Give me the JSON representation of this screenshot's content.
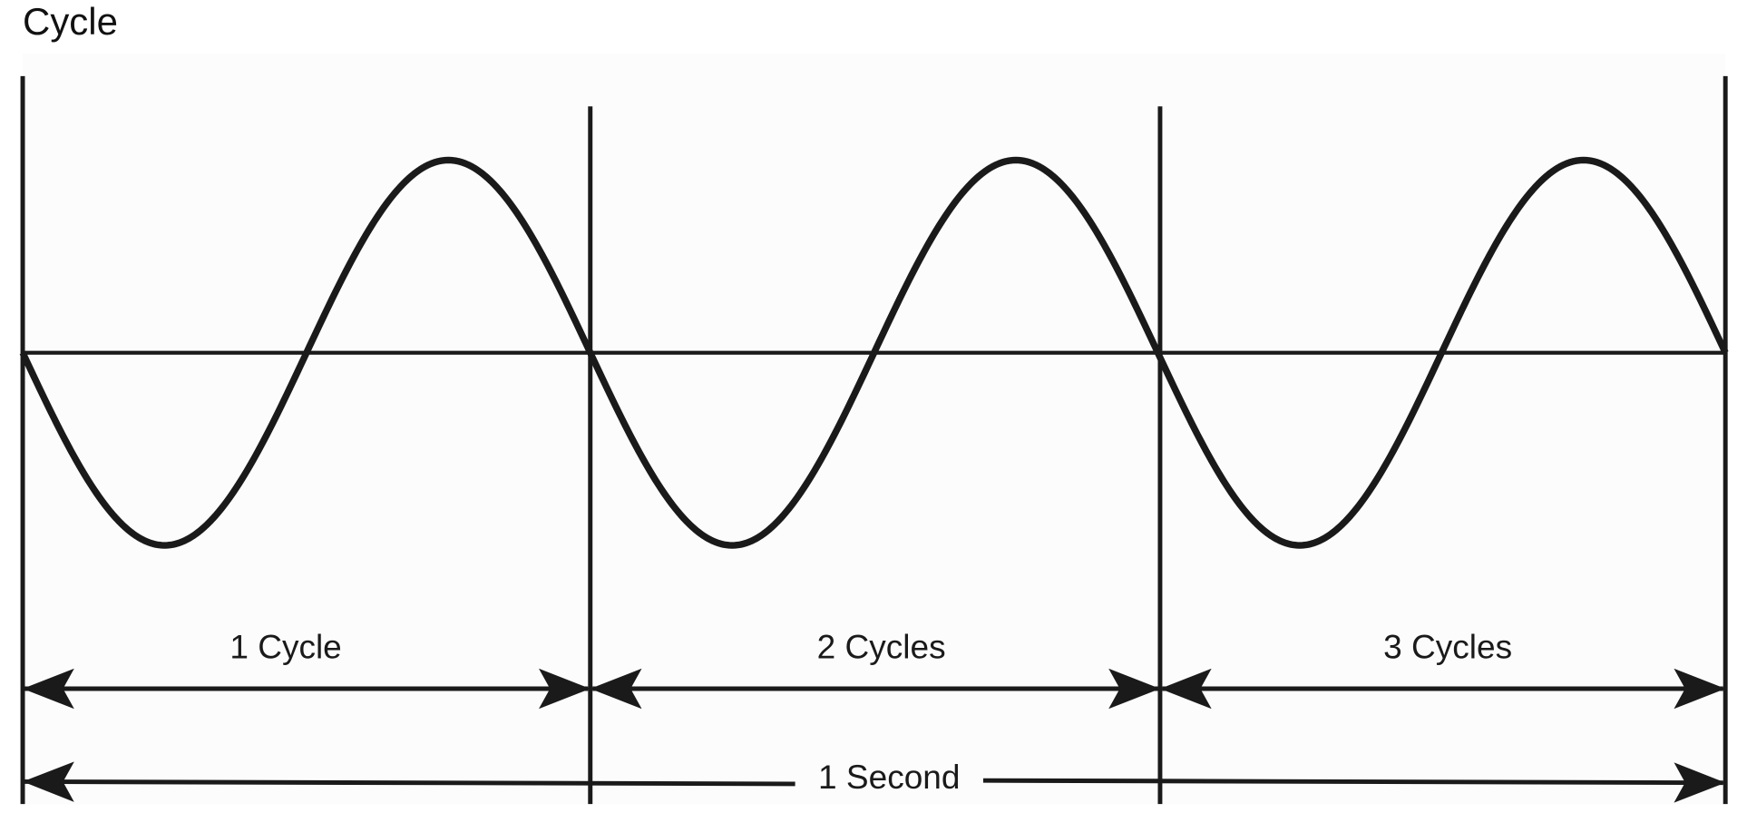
{
  "title": "Cycle",
  "labels": [
    "1 Cycle",
    "2 Cycles",
    "3 Cycles"
  ],
  "total_label": "1 Second"
}
